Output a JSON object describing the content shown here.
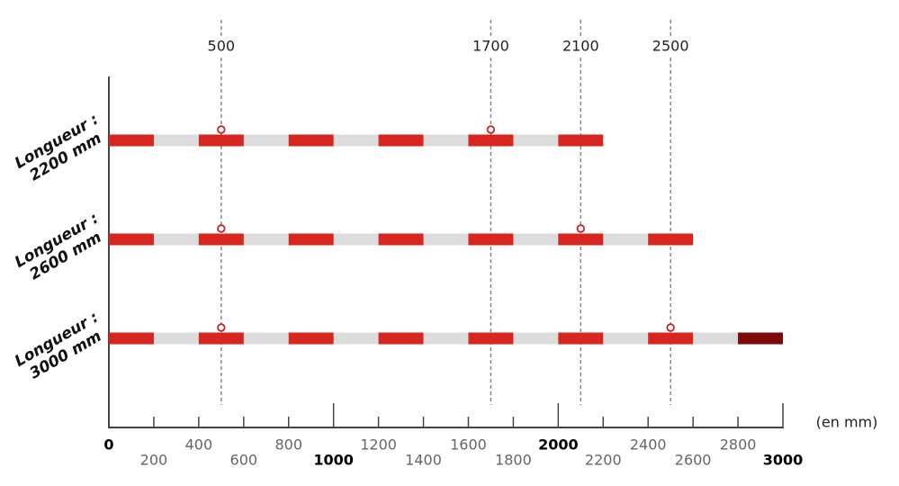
{
  "chart_data": {
    "type": "barrier",
    "xlim": [
      0,
      3000
    ],
    "xticks": [
      0,
      200,
      400,
      600,
      800,
      1000,
      1200,
      1400,
      1600,
      1800,
      2000,
      2200,
      2400,
      2600,
      2800,
      3000
    ],
    "x_label": "(en mm)",
    "reference_lines": [
      500,
      1700,
      2100,
      2500
    ],
    "colors": [
      "#d6261f",
      "#dcdcdc"
    ],
    "series": [
      {
        "name": [
          "Longueur :",
          "2200 mm"
        ],
        "value": 2200,
        "anchors": [
          500,
          1700
        ]
      },
      {
        "name": [
          "Longueur :",
          "2600 mm"
        ],
        "value": 2600,
        "anchors": [
          500,
          2100
        ]
      },
      {
        "name": [
          "Longueur :",
          "3000 mm"
        ],
        "value": 3000,
        "anchors": [
          500,
          2500
        ],
        "end_color": "#7d0a0a"
      }
    ]
  }
}
